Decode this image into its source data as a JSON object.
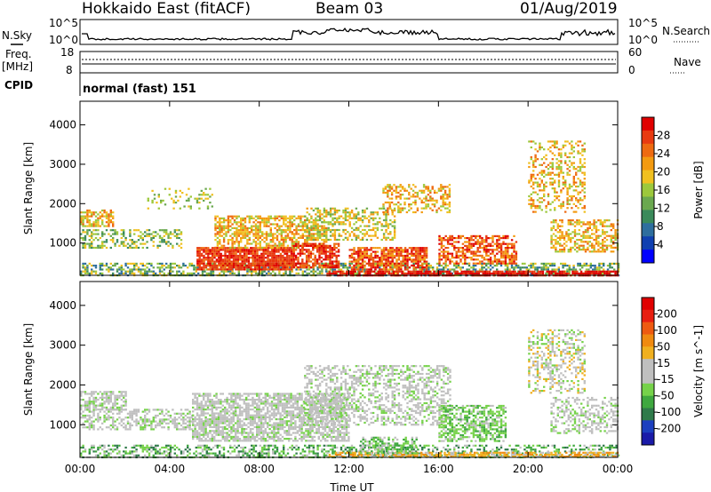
{
  "header": {
    "radar": "Hokkaido East (fitACF)",
    "beam": "Beam 03",
    "date": "01/Aug/2019"
  },
  "status_panels": {
    "nsky_label": "N.Sky",
    "nsearch_label": "N.Search",
    "freq_label_1": "Freq.",
    "freq_label_2": "[MHz]",
    "nave_label": "Nave",
    "cpid_label": "CPID",
    "cpid_value": "normal (fast) 151",
    "noise_ticks_left": [
      "10^5",
      "10^0"
    ],
    "noise_ticks_right": [
      "10^5",
      "10^0"
    ],
    "freq_ticks": [
      "18",
      "8"
    ],
    "nave_ticks": [
      "60",
      "0"
    ]
  },
  "chart_data": [
    {
      "type": "heatmap",
      "title": "",
      "xlabel": "",
      "ylabel": "Slant Range [km]",
      "ylim": [
        180,
        4600
      ],
      "y_ticks": [
        "1000",
        "2000",
        "3000",
        "4000"
      ],
      "x_ticks": [
        "00:00",
        "04:00",
        "08:00",
        "12:00",
        "16:00",
        "20:00",
        "00:00"
      ],
      "colorbar": {
        "label": "Power [dB]",
        "ticks": [
          "4",
          "8",
          "12",
          "16",
          "20",
          "24",
          "28"
        ],
        "colors": [
          "#0000ff",
          "#1040b0",
          "#2e6e9e",
          "#3a8a5a",
          "#6aa84f",
          "#9cc83c",
          "#f0c020",
          "#f39a10",
          "#ee6a10",
          "#e83a10",
          "#e00000"
        ]
      }
    },
    {
      "type": "heatmap",
      "title": "",
      "xlabel": "Time UT",
      "ylabel": "Slant Range [km]",
      "ylim": [
        180,
        4600
      ],
      "y_ticks": [
        "1000",
        "2000",
        "3000",
        "4000"
      ],
      "x_ticks": [
        "00:00",
        "04:00",
        "08:00",
        "12:00",
        "16:00",
        "20:00",
        "00:00"
      ],
      "colorbar": {
        "label": "Velocity [m s^-1]",
        "ticks": [
          "200",
          "100",
          "50",
          "15",
          "-15",
          "-50",
          "-100",
          "-200"
        ],
        "colors": [
          "#1a1aa8",
          "#1c3fbf",
          "#2f7a4a",
          "#3fa83f",
          "#76d24a",
          "#bfbfbf",
          "#bfbfbf",
          "#f0b020",
          "#f08a10",
          "#ee5a10",
          "#e81e10",
          "#e00000"
        ]
      }
    }
  ]
}
